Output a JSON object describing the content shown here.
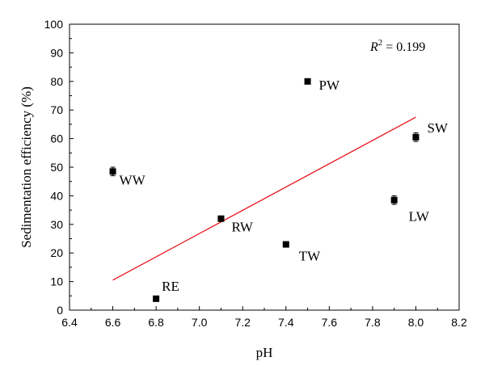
{
  "chart_data": {
    "type": "scatter",
    "xlabel": "pH",
    "ylabel": "Sedimentation efficiency (%)",
    "xlim": [
      6.4,
      8.2
    ],
    "ylim": [
      0,
      100
    ],
    "xticks": [
      "6.4",
      "6.6",
      "6.8",
      "7.0",
      "7.2",
      "7.4",
      "7.6",
      "7.8",
      "8.0",
      "8.2"
    ],
    "yticks": [
      "0",
      "10",
      "20",
      "30",
      "40",
      "50",
      "60",
      "70",
      "80",
      "90",
      "100"
    ],
    "grid": false,
    "points": [
      {
        "label": "WW",
        "x": 6.6,
        "y": 48.5,
        "err": 1.5
      },
      {
        "label": "RE",
        "x": 6.8,
        "y": 4,
        "err": 0
      },
      {
        "label": "RW",
        "x": 7.1,
        "y": 32,
        "err": 0
      },
      {
        "label": "TW",
        "x": 7.4,
        "y": 23,
        "err": 0
      },
      {
        "label": "PW",
        "x": 7.5,
        "y": 80,
        "err": 0
      },
      {
        "label": "LW",
        "x": 7.9,
        "y": 38.5,
        "err": 1.5
      },
      {
        "label": "SW",
        "x": 8.0,
        "y": 60.5,
        "err": 1.5
      }
    ],
    "fit_line": {
      "x": [
        6.6,
        8.0
      ],
      "y": [
        10.5,
        67.5
      ],
      "color": "#e8141c"
    },
    "annotation": {
      "r_label": "R",
      "superscript": "2",
      "value_text": " = 0.199"
    }
  }
}
